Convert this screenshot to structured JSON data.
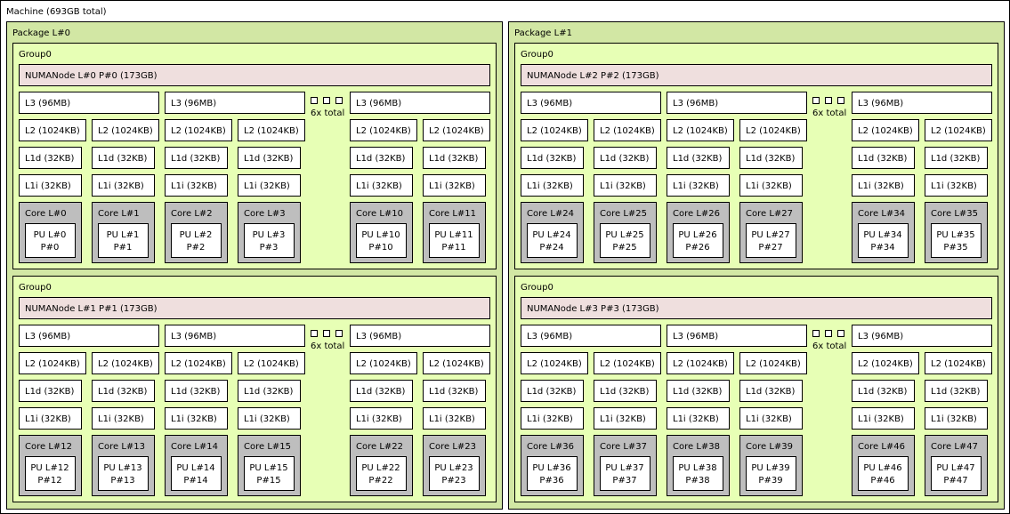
{
  "machine": {
    "label": "Machine (693GB total)",
    "packages": [
      {
        "label": "Package L#0",
        "groups": [
          {
            "label": "Group0",
            "numa": "NUMANode L#0 P#0 (173GB)",
            "l3": [
              "L3 (96MB)",
              "L3 (96MB)",
              "L3 (96MB)"
            ],
            "l3_more": "6x total",
            "l2": [
              "L2 (1024KB)",
              "L2 (1024KB)",
              "L2 (1024KB)",
              "L2 (1024KB)",
              "L2 (1024KB)",
              "L2 (1024KB)"
            ],
            "l1d": [
              "L1d (32KB)",
              "L1d (32KB)",
              "L1d (32KB)",
              "L1d (32KB)",
              "L1d (32KB)",
              "L1d (32KB)"
            ],
            "l1i": [
              "L1i (32KB)",
              "L1i (32KB)",
              "L1i (32KB)",
              "L1i (32KB)",
              "L1i (32KB)",
              "L1i (32KB)"
            ],
            "cores": [
              {
                "label": "Core L#0",
                "pu": [
                  "PU L#0",
                  "P#0"
                ]
              },
              {
                "label": "Core L#1",
                "pu": [
                  "PU L#1",
                  "P#1"
                ]
              },
              {
                "label": "Core L#2",
                "pu": [
                  "PU L#2",
                  "P#2"
                ]
              },
              {
                "label": "Core L#3",
                "pu": [
                  "PU L#3",
                  "P#3"
                ]
              },
              {
                "label": "Core L#10",
                "pu": [
                  "PU L#10",
                  "P#10"
                ]
              },
              {
                "label": "Core L#11",
                "pu": [
                  "PU L#11",
                  "P#11"
                ]
              }
            ]
          },
          {
            "label": "Group0",
            "numa": "NUMANode L#1 P#1 (173GB)",
            "l3": [
              "L3 (96MB)",
              "L3 (96MB)",
              "L3 (96MB)"
            ],
            "l3_more": "6x total",
            "l2": [
              "L2 (1024KB)",
              "L2 (1024KB)",
              "L2 (1024KB)",
              "L2 (1024KB)",
              "L2 (1024KB)",
              "L2 (1024KB)"
            ],
            "l1d": [
              "L1d (32KB)",
              "L1d (32KB)",
              "L1d (32KB)",
              "L1d (32KB)",
              "L1d (32KB)",
              "L1d (32KB)"
            ],
            "l1i": [
              "L1i (32KB)",
              "L1i (32KB)",
              "L1i (32KB)",
              "L1i (32KB)",
              "L1i (32KB)",
              "L1i (32KB)"
            ],
            "cores": [
              {
                "label": "Core L#12",
                "pu": [
                  "PU L#12",
                  "P#12"
                ]
              },
              {
                "label": "Core L#13",
                "pu": [
                  "PU L#13",
                  "P#13"
                ]
              },
              {
                "label": "Core L#14",
                "pu": [
                  "PU L#14",
                  "P#14"
                ]
              },
              {
                "label": "Core L#15",
                "pu": [
                  "PU L#15",
                  "P#15"
                ]
              },
              {
                "label": "Core L#22",
                "pu": [
                  "PU L#22",
                  "P#22"
                ]
              },
              {
                "label": "Core L#23",
                "pu": [
                  "PU L#23",
                  "P#23"
                ]
              }
            ]
          }
        ]
      },
      {
        "label": "Package L#1",
        "groups": [
          {
            "label": "Group0",
            "numa": "NUMANode L#2 P#2 (173GB)",
            "l3": [
              "L3 (96MB)",
              "L3 (96MB)",
              "L3 (96MB)"
            ],
            "l3_more": "6x total",
            "l2": [
              "L2 (1024KB)",
              "L2 (1024KB)",
              "L2 (1024KB)",
              "L2 (1024KB)",
              "L2 (1024KB)",
              "L2 (1024KB)"
            ],
            "l1d": [
              "L1d (32KB)",
              "L1d (32KB)",
              "L1d (32KB)",
              "L1d (32KB)",
              "L1d (32KB)",
              "L1d (32KB)"
            ],
            "l1i": [
              "L1i (32KB)",
              "L1i (32KB)",
              "L1i (32KB)",
              "L1i (32KB)",
              "L1i (32KB)",
              "L1i (32KB)"
            ],
            "cores": [
              {
                "label": "Core L#24",
                "pu": [
                  "PU L#24",
                  "P#24"
                ]
              },
              {
                "label": "Core L#25",
                "pu": [
                  "PU L#25",
                  "P#25"
                ]
              },
              {
                "label": "Core L#26",
                "pu": [
                  "PU L#26",
                  "P#26"
                ]
              },
              {
                "label": "Core L#27",
                "pu": [
                  "PU L#27",
                  "P#27"
                ]
              },
              {
                "label": "Core L#34",
                "pu": [
                  "PU L#34",
                  "P#34"
                ]
              },
              {
                "label": "Core L#35",
                "pu": [
                  "PU L#35",
                  "P#35"
                ]
              }
            ]
          },
          {
            "label": "Group0",
            "numa": "NUMANode L#3 P#3 (173GB)",
            "l3": [
              "L3 (96MB)",
              "L3 (96MB)",
              "L3 (96MB)"
            ],
            "l3_more": "6x total",
            "l2": [
              "L2 (1024KB)",
              "L2 (1024KB)",
              "L2 (1024KB)",
              "L2 (1024KB)",
              "L2 (1024KB)",
              "L2 (1024KB)"
            ],
            "l1d": [
              "L1d (32KB)",
              "L1d (32KB)",
              "L1d (32KB)",
              "L1d (32KB)",
              "L1d (32KB)",
              "L1d (32KB)"
            ],
            "l1i": [
              "L1i (32KB)",
              "L1i (32KB)",
              "L1i (32KB)",
              "L1i (32KB)",
              "L1i (32KB)",
              "L1i (32KB)"
            ],
            "cores": [
              {
                "label": "Core L#36",
                "pu": [
                  "PU L#36",
                  "P#36"
                ]
              },
              {
                "label": "Core L#37",
                "pu": [
                  "PU L#37",
                  "P#37"
                ]
              },
              {
                "label": "Core L#38",
                "pu": [
                  "PU L#38",
                  "P#38"
                ]
              },
              {
                "label": "Core L#39",
                "pu": [
                  "PU L#39",
                  "P#39"
                ]
              },
              {
                "label": "Core L#46",
                "pu": [
                  "PU L#46",
                  "P#46"
                ]
              },
              {
                "label": "Core L#47",
                "pu": [
                  "PU L#47",
                  "P#47"
                ]
              }
            ]
          }
        ]
      }
    ]
  }
}
